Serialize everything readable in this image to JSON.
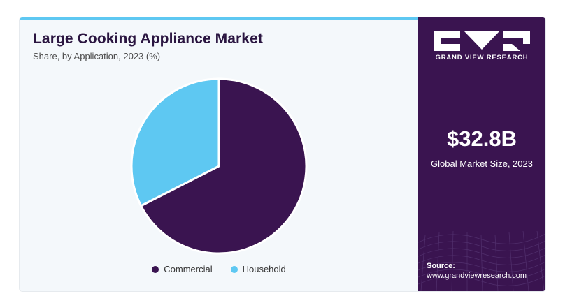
{
  "title": "Large Cooking Appliance Market",
  "subtitle": "Share, by Application, 2023 (%)",
  "chart_data": {
    "type": "pie",
    "title": "Large Cooking Appliance Market",
    "subtitle": "Share, by Application, 2023 (%)",
    "categories": [
      "Commercial",
      "Household"
    ],
    "values": [
      67.5,
      32.5
    ],
    "colors": [
      "#3a1450",
      "#5ec8f2"
    ],
    "legend_position": "bottom",
    "start_angle_deg": 0,
    "direction": "clockwise"
  },
  "legend": [
    {
      "label": "Commercial",
      "color": "#3a1450"
    },
    {
      "label": "Household",
      "color": "#5ec8f2"
    }
  ],
  "sidebar": {
    "brand": "GRAND VIEW RESEARCH",
    "market_size": "$32.8B",
    "market_size_label": "Global Market Size, 2023",
    "source_label": "Source:",
    "source_url": "www.grandviewresearch.com"
  },
  "colors": {
    "panel_bg": "#3a1450",
    "accent": "#5ec8f2",
    "chart_bg": "#f4f8fb"
  }
}
